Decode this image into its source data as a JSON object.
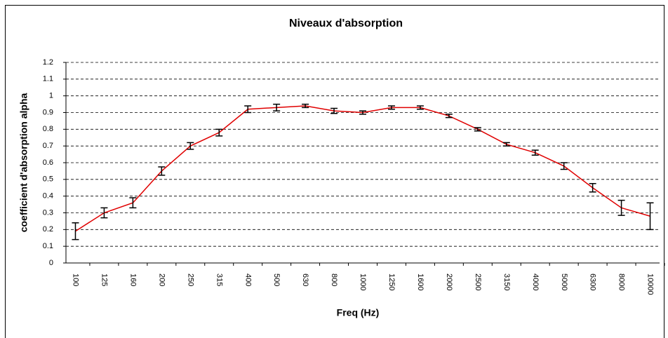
{
  "chart_data": {
    "type": "line",
    "title": "Niveaux d'absorption",
    "x_label": "Freq (Hz)",
    "y_label": "coefficient d'absorption alpha",
    "categories": [
      "100",
      "125",
      "160",
      "200",
      "250",
      "315",
      "400",
      "500",
      "630",
      "800",
      "1000",
      "1250",
      "1600",
      "2000",
      "2500",
      "3150",
      "4000",
      "5000",
      "6300",
      "8000",
      "10000"
    ],
    "series": [
      {
        "color": "#e00000",
        "values": [
          0.19,
          0.3,
          0.36,
          0.55,
          0.7,
          0.78,
          0.92,
          0.93,
          0.94,
          0.91,
          0.9,
          0.93,
          0.93,
          0.88,
          0.8,
          0.71,
          0.66,
          0.58,
          0.45,
          0.33,
          0.28
        ],
        "errors": [
          0.05,
          0.03,
          0.03,
          0.025,
          0.02,
          0.02,
          0.02,
          0.02,
          0.01,
          0.015,
          0.01,
          0.01,
          0.01,
          0.01,
          0.01,
          0.01,
          0.015,
          0.02,
          0.025,
          0.045,
          0.08
        ]
      }
    ],
    "ylim": [
      0,
      1.2
    ],
    "yticks": [
      0,
      0.1,
      0.2,
      0.3,
      0.4,
      0.5,
      0.6,
      0.7,
      0.8,
      0.9,
      1,
      1.1,
      1.2
    ],
    "grid": true
  }
}
